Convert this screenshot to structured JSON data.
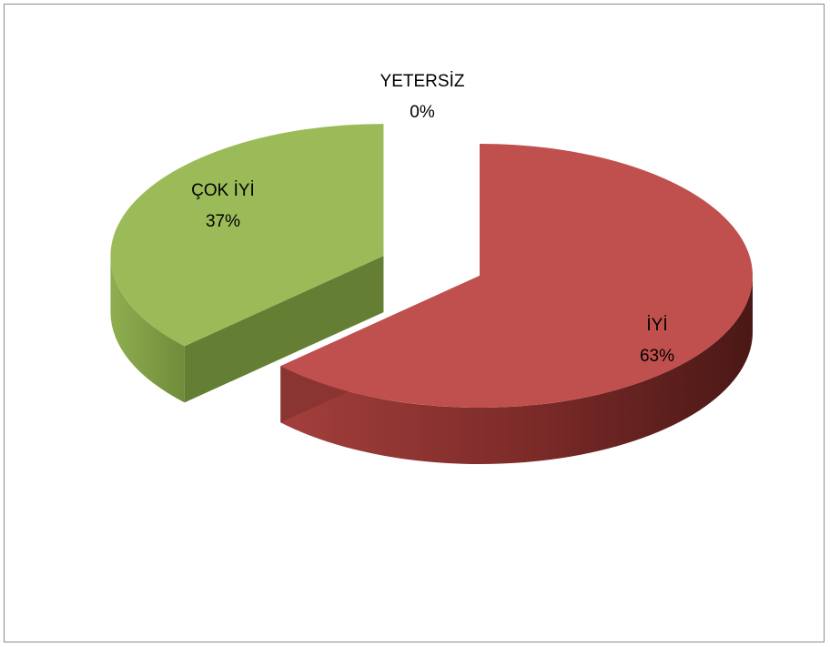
{
  "chart_data": {
    "type": "pie",
    "style": "3d-exploded",
    "title": "",
    "slices": [
      {
        "label": "YETERSİZ",
        "value": 0,
        "percent_label": "0%",
        "color": "#7f7f7f"
      },
      {
        "label": "İYİ",
        "value": 63,
        "percent_label": "63%",
        "color": "#c0504d"
      },
      {
        "label": "ÇOK İYİ",
        "value": 37,
        "percent_label": "37%",
        "color": "#9bbb59"
      }
    ],
    "legend": "none"
  }
}
